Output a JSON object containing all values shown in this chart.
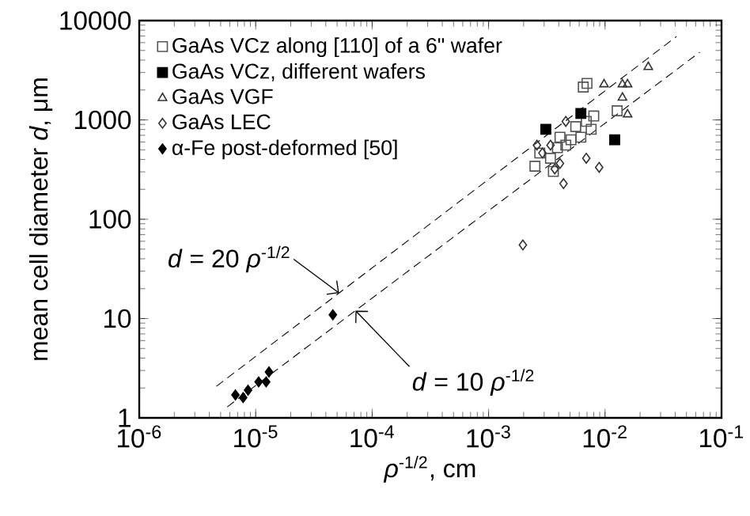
{
  "chart_data": {
    "type": "scatter",
    "xlabel": "*ρ*$^{-1/2}$,  cm",
    "ylabel": "mean cell diameter *d*, μm",
    "log": "xy",
    "grid": false,
    "legend": "top left",
    "xlim": [
      1e-06,
      0.1
    ],
    "ylim": [
      1,
      10000
    ],
    "xticks": [
      {
        "value": 1e-06,
        "label": "10$^{-6}$"
      },
      {
        "value": 1e-05,
        "label": "10$^{-5}$"
      },
      {
        "value": 0.0001,
        "label": "10$^{-4}$"
      },
      {
        "value": 0.001,
        "label": "10$^{-3}$"
      },
      {
        "value": 0.01,
        "label": "10$^{-2}$"
      },
      {
        "value": 0.1,
        "label": "10$^{-1}$"
      }
    ],
    "yticks": [
      1,
      10,
      100,
      1000,
      10000
    ],
    "series": [
      {
        "name": "GaAs VCz along [110] of a 6\" wafer",
        "color": "#555555",
        "marker": "square",
        "x": [
          0.0065,
          0.007,
          0.0127,
          0.008,
          0.0069,
          0.0056,
          0.0041,
          0.0046,
          0.0034,
          0.0025,
          0.0036,
          0.0062,
          0.0076,
          0.0051,
          0.0039,
          0.00275
        ],
        "values": [
          2140,
          2330,
          1235,
          1095,
          965,
          855,
          670,
          557,
          411,
          342,
          303,
          670,
          804,
          631,
          525,
          464
        ]
      },
      {
        "name": "GaAs VCz, different wafers",
        "color": "#000000",
        "marker": "square",
        "x": [
          0.0031,
          0.0121,
          0.0062
        ],
        "values": [
          804,
          630,
          1160
        ]
      },
      {
        "name": "GaAs VGF",
        "color": "#333333",
        "marker": "triangle",
        "x": [
          0.0235,
          0.0098,
          0.0141,
          0.0156,
          0.0141,
          0.0156
        ],
        "values": [
          3410,
          2280,
          2280,
          2280,
          1675,
          1135
        ]
      },
      {
        "name": "GaAs LEC",
        "color": "#333333",
        "marker": "diamond",
        "x": [
          0.0046,
          0.0026,
          0.0034,
          0.0029,
          0.0041,
          0.0069,
          0.0089,
          0.0044,
          0.00197,
          0.0037
        ],
        "values": [
          965,
          557,
          557,
          464,
          364,
          411,
          333,
          228,
          55,
          321
        ]
      },
      {
        "name": "α-Fe post-deformed [50]",
        "color": "#000000",
        "marker": "diamond",
        "x": [
          6.7e-06,
          7.8e-06,
          8.6e-06,
          1.06e-05,
          1.23e-05,
          1.3e-05,
          4.6e-05
        ],
        "values": [
          1.7,
          1.6,
          1.9,
          2.3,
          2.3,
          2.9,
          10.9
        ]
      },
      {
        "type": "line",
        "color": "#000000",
        "line_style": "dashed",
        "marker": "none",
        "x": [
          4.6e-06,
          0.041
        ],
        "values": [
          2.08,
          6900
        ]
      },
      {
        "type": "line",
        "color": "#000000",
        "line_style": "dashed",
        "marker": "none",
        "x": [
          5.7e-06,
          0.065
        ],
        "values": [
          1.29,
          4800
        ]
      }
    ],
    "annotations": [
      {
        "text": "*d* = 20 *ρ*$^{-1/2}$",
        "x": 5.2e-05,
        "y": 18.1
      },
      {
        "text": "*d* = 10 *ρ*$^{-1/2}$",
        "x": 7.2e-05,
        "y": 12.0
      }
    ]
  }
}
